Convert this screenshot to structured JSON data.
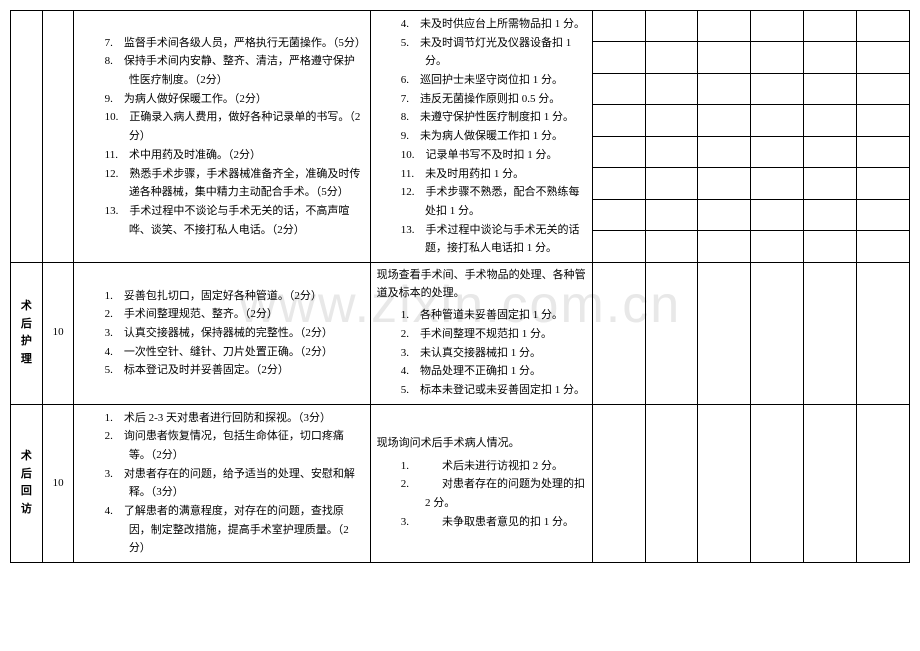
{
  "watermark": "www.zixin.com.cn",
  "rows": [
    {
      "label": "",
      "score": "",
      "standard_items": [
        "7.　监督手术间各级人员，严格执行无菌操作。（5分）",
        "8.　保持手术间内安静、整齐、清洁，严格遵守保护性医疗制度。（2分）",
        "9.　为病人做好保暖工作。（2分）",
        "10.　正确录入病人费用，做好各种记录单的书写。（2分）",
        "11.　术中用药及时准确。（2分）",
        "12.　熟悉手术步骤，手术器械准备齐全，准确及时传递各种器械，集中精力主动配合手术。（5分）",
        "13.　手术过程中不谈论与手术无关的话，不高声喧哗、谈笑、不接打私人电话。（2分）"
      ],
      "method_header": "",
      "method_items": [
        "4.　未及时供应台上所需物品扣 1 分。",
        "5.　未及时调节灯光及仪器设备扣 1 分。",
        "6.　巡回护士未坚守岗位扣 1 分。",
        "7.　违反无菌操作原则扣 0.5 分。",
        "8.　未遵守保护性医疗制度扣 1 分。",
        "9.　未为病人做保暖工作扣 1 分。",
        "10.　记录单书写不及时扣 1 分。",
        "11.　未及时用药扣 1 分。",
        "12.　手术步骤不熟悉，配合不熟练每处扣 1 分。",
        "13.　手术过程中谈论与手术无关的话题，接打私人电话扣 1 分。"
      ],
      "narrow_count": 8
    },
    {
      "label": "术后护理",
      "score": "10",
      "standard_items": [
        "1.　妥善包扎切口，固定好各种管道。（2分）",
        "2.　手术间整理规范、整齐。（2分）",
        "3.　认真交接器械，保持器械的完整性。（2分）",
        "4.　一次性空针、缝针、刀片处置正确。（2分）",
        "5.　标本登记及时并妥善固定。（2分）"
      ],
      "method_header": "现场查看手术间、手术物品的处理、各种管道及标本的处理。",
      "method_items": [
        "1.　各种管道未妥善固定扣 1 分。",
        "2.　手术间整理不规范扣 1 分。",
        "3.　未认真交接器械扣 1 分。",
        "4.　物品处理不正确扣 1 分。",
        "5.　标本未登记或未妥善固定扣 1 分。"
      ],
      "narrow_count": 1
    },
    {
      "label": "术后回访",
      "score": "10",
      "standard_items": [
        "1.　术后 2-3 天对患者进行回防和探视。（3分）",
        "2.　询问患者恢复情况，包括生命体征，切口疼痛等。（2分）",
        "3.　对患者存在的问题，给予适当的处理、安慰和解释。（3分）",
        "4.　了解患者的满意程度，对存在的问题，查找原因，制定整改措施，提高手术室护理质量。（2分）"
      ],
      "method_header": "现场询问术后手术病人情况。",
      "method_items": [
        "1.　　　术后未进行访视扣 2 分。",
        "2.　　　对患者存在的问题为处理的扣 2 分。",
        "3.　　　未争取患者意见的扣 1 分。"
      ],
      "narrow_count": 1
    }
  ],
  "colors": {
    "background": "#ffffff",
    "border": "#000000",
    "text": "#000000",
    "watermark": "#e8e8e8"
  }
}
